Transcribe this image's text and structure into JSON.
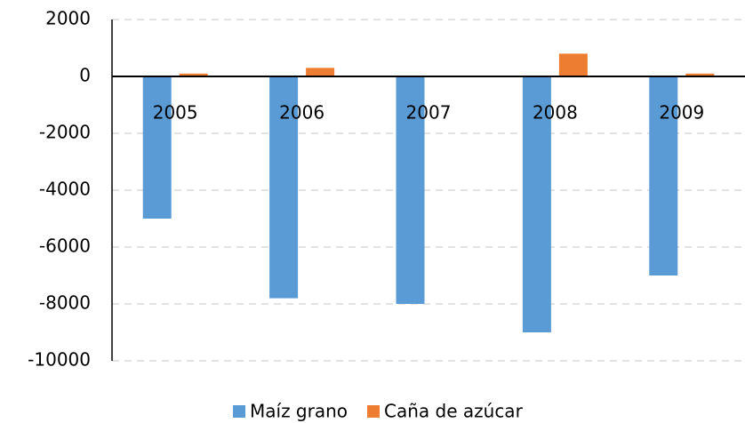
{
  "chart_data": {
    "type": "bar",
    "categories": [
      "2005",
      "2006",
      "2007",
      "2008",
      "2009"
    ],
    "series": [
      {
        "name": "Maíz grano",
        "color": "#5b9bd5",
        "values": [
          -5000,
          -7800,
          -8000,
          -9000,
          -7000
        ]
      },
      {
        "name": "Caña de azúcar",
        "color": "#ed7d31",
        "values": [
          100,
          300,
          0,
          800,
          100
        ]
      }
    ],
    "ylim": [
      -10000,
      2000
    ],
    "yticks": [
      -10000,
      -8000,
      -6000,
      -4000,
      -2000,
      0,
      2000
    ],
    "grid": true,
    "legend": "bottom"
  }
}
